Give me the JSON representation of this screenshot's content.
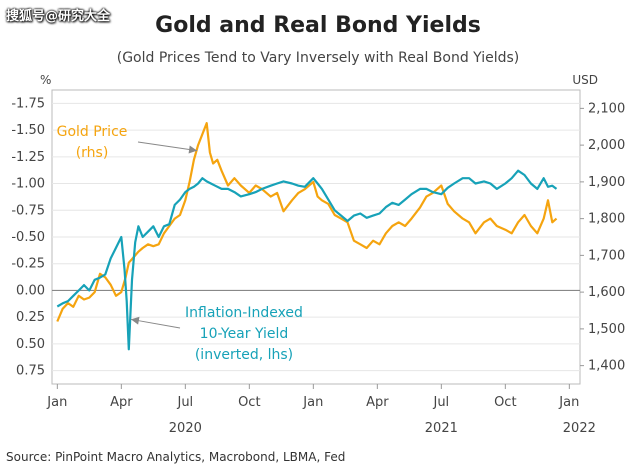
{
  "watermark": "搜狐号@研究大全",
  "source": "Source: PinPoint Macro Analytics, Macrobond, LBMA, Fed",
  "chart_data": {
    "type": "line",
    "title": "Gold and Real Bond Yields",
    "subtitle": "(Gold Prices Tend to Vary Inversely with Real Bond Yields)",
    "left_axis": {
      "unit_label": "%",
      "range": [
        0.875,
        -1.875
      ],
      "ticks": [
        -1.75,
        -1.5,
        -1.25,
        -1.0,
        -0.75,
        -0.5,
        -0.25,
        0.0,
        0.25,
        0.5,
        0.75
      ],
      "tick_labels": [
        "-1.75",
        "-1.50",
        "-1.25",
        "-1.00",
        "-0.75",
        "-0.50",
        "-0.25",
        "0.00",
        "0.25",
        "0.50",
        "0.75"
      ]
    },
    "right_axis": {
      "unit_label": "USD",
      "range": [
        1350,
        2150
      ],
      "ticks": [
        1400,
        1500,
        1600,
        1700,
        1800,
        1900,
        2000,
        2100
      ],
      "tick_labels": [
        "1,400",
        "1,500",
        "1,600",
        "1,700",
        "1,800",
        "1,900",
        "2,000",
        "2,100"
      ]
    },
    "x_axis": {
      "month_ticks": [
        0,
        3,
        6,
        9,
        12,
        15,
        18,
        21,
        24
      ],
      "month_labels": [
        "Jan",
        "Apr",
        "Jul",
        "Oct",
        "Jan",
        "Apr",
        "Jul",
        "Oct",
        "Jan"
      ],
      "year_labels": [
        "2020",
        "2021",
        "2022"
      ],
      "year_positions": [
        6,
        18,
        24
      ]
    },
    "zero_line": 0.0,
    "series": [
      {
        "name": "Gold Price (rhs)",
        "axis": "right",
        "color": "#F5A40F",
        "x": [
          0,
          0.25,
          0.5,
          0.75,
          1.0,
          1.25,
          1.5,
          1.75,
          2.0,
          2.25,
          2.5,
          2.75,
          3.0,
          3.2,
          3.35,
          3.5,
          3.65,
          3.8,
          4.0,
          4.25,
          4.5,
          4.75,
          5.0,
          5.25,
          5.5,
          5.75,
          6.0,
          6.2,
          6.4,
          6.6,
          6.8,
          7.0,
          7.15,
          7.3,
          7.5,
          7.7,
          8.0,
          8.3,
          8.6,
          9.0,
          9.3,
          9.6,
          10.0,
          10.3,
          10.6,
          11.0,
          11.3,
          11.6,
          12.0,
          12.2,
          12.4,
          12.7,
          13.0,
          13.3,
          13.6,
          13.9,
          14.2,
          14.5,
          14.8,
          15.1,
          15.4,
          15.7,
          16.0,
          16.3,
          16.6,
          17.0,
          17.3,
          17.6,
          18.0,
          18.3,
          18.6,
          19.0,
          19.3,
          19.6,
          20.0,
          20.3,
          20.6,
          21.0,
          21.3,
          21.6,
          21.9,
          22.2,
          22.5,
          22.8,
          23.0,
          23.2,
          23.4
        ],
        "values": [
          1520,
          1555,
          1570,
          1560,
          1590,
          1580,
          1585,
          1600,
          1650,
          1640,
          1620,
          1590,
          1600,
          1640,
          1680,
          1690,
          1700,
          1710,
          1720,
          1730,
          1725,
          1730,
          1760,
          1780,
          1800,
          1810,
          1850,
          1900,
          1960,
          2000,
          2030,
          2060,
          1980,
          1950,
          1960,
          1930,
          1890,
          1910,
          1890,
          1870,
          1890,
          1880,
          1860,
          1870,
          1820,
          1850,
          1870,
          1880,
          1900,
          1860,
          1850,
          1840,
          1810,
          1800,
          1790,
          1740,
          1730,
          1720,
          1740,
          1730,
          1760,
          1780,
          1790,
          1780,
          1800,
          1830,
          1860,
          1870,
          1890,
          1840,
          1820,
          1800,
          1790,
          1760,
          1790,
          1800,
          1780,
          1770,
          1760,
          1790,
          1810,
          1780,
          1760,
          1800,
          1850,
          1790,
          1800
        ]
      },
      {
        "name": "Inflation-Indexed 10-Year Yield (inverted, lhs)",
        "axis": "left",
        "color": "#17A2B8",
        "x": [
          0,
          0.25,
          0.5,
          0.75,
          1.0,
          1.25,
          1.5,
          1.75,
          2.0,
          2.25,
          2.5,
          2.75,
          3.0,
          3.15,
          3.25,
          3.35,
          3.5,
          3.65,
          3.8,
          4.0,
          4.25,
          4.5,
          4.75,
          5.0,
          5.25,
          5.5,
          5.75,
          6.0,
          6.2,
          6.4,
          6.6,
          6.8,
          7.0,
          7.2,
          7.4,
          7.7,
          8.0,
          8.3,
          8.6,
          9.0,
          9.3,
          9.6,
          10.0,
          10.3,
          10.6,
          11.0,
          11.3,
          11.6,
          12.0,
          12.2,
          12.4,
          12.7,
          13.0,
          13.3,
          13.6,
          13.9,
          14.2,
          14.5,
          14.8,
          15.1,
          15.4,
          15.7,
          16.0,
          16.3,
          16.6,
          17.0,
          17.3,
          17.6,
          18.0,
          18.3,
          18.6,
          19.0,
          19.3,
          19.6,
          20.0,
          20.3,
          20.6,
          21.0,
          21.3,
          21.6,
          21.9,
          22.2,
          22.5,
          22.8,
          23.0,
          23.2,
          23.4
        ],
        "values": [
          0.15,
          0.12,
          0.1,
          0.05,
          0.0,
          -0.05,
          0.0,
          -0.1,
          -0.12,
          -0.15,
          -0.3,
          -0.4,
          -0.5,
          -0.2,
          0.1,
          0.55,
          -0.1,
          -0.45,
          -0.6,
          -0.5,
          -0.55,
          -0.6,
          -0.5,
          -0.6,
          -0.62,
          -0.8,
          -0.85,
          -0.92,
          -0.95,
          -0.97,
          -1.0,
          -1.05,
          -1.02,
          -1.0,
          -0.98,
          -0.95,
          -0.95,
          -0.92,
          -0.88,
          -0.9,
          -0.92,
          -0.95,
          -0.98,
          -1.0,
          -1.02,
          -1.0,
          -0.98,
          -0.97,
          -1.05,
          -1.0,
          -0.95,
          -0.85,
          -0.75,
          -0.7,
          -0.65,
          -0.7,
          -0.72,
          -0.68,
          -0.7,
          -0.72,
          -0.78,
          -0.82,
          -0.8,
          -0.85,
          -0.9,
          -0.95,
          -0.95,
          -0.92,
          -0.9,
          -0.96,
          -1.0,
          -1.05,
          -1.05,
          -1.0,
          -1.02,
          -1.0,
          -0.95,
          -1.0,
          -1.05,
          -1.12,
          -1.08,
          -1.0,
          -0.95,
          -1.05,
          -0.97,
          -0.98,
          -0.95
        ]
      }
    ],
    "annotations": [
      {
        "lines": [
          "Gold Price",
          "(rhs)"
        ],
        "series": "Gold Price (rhs)"
      },
      {
        "lines": [
          "Inflation-Indexed",
          "10-Year Yield",
          "(inverted, lhs)"
        ],
        "series": "Inflation-Indexed 10-Year Yield (inverted, lhs)"
      }
    ],
    "colors": {
      "gold": "#F5A40F",
      "yield": "#17A2B8",
      "title": "#222222",
      "subtitle": "#444444",
      "axis": "#444444",
      "grid": "#E6E6E6",
      "zero_line": "#888888",
      "arrow": "#888888"
    }
  }
}
